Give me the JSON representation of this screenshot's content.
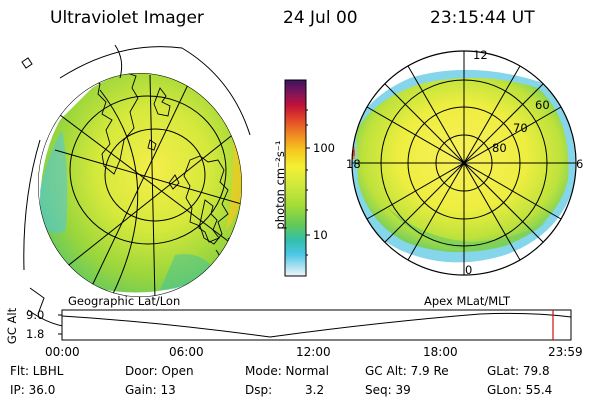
{
  "header": {
    "title": "Ultraviolet Imager",
    "date": "24 Jul 00",
    "time": "23:15:44 UT"
  },
  "colorbar": {
    "unit_label": "photon cm⁻²s⁻¹",
    "ticks": [
      "100",
      "10"
    ],
    "colors": [
      "#3a1560",
      "#7a145c",
      "#c2123a",
      "#e2442a",
      "#f08a22",
      "#f6c81e",
      "#f4f034",
      "#cfe83c",
      "#a4dc38",
      "#62c858",
      "#33bfae",
      "#4ec6e6",
      "#a9e0ef",
      "#eef5f8"
    ]
  },
  "geo_map": {
    "label": "Geographic Lat/Lon"
  },
  "apex_map": {
    "label": "Apex MLat/MLT",
    "mlt_labels": [
      "12",
      "18",
      "6",
      "0"
    ],
    "mlat_labels": [
      "60",
      "70",
      "80"
    ]
  },
  "altitude_plot": {
    "ylabel": "GC Alt",
    "yticks": [
      "9.0",
      "1.8"
    ],
    "time_ticks": [
      "00:00",
      "06:00",
      "12:00",
      "18:00",
      "23:59"
    ]
  },
  "status": {
    "filter": "Flt: LBHL",
    "ip": "IP: 36.0",
    "door": "Door: Open",
    "gain": "Gain: 13",
    "mode": "Mode: Normal",
    "dsp_label": "Dsp:",
    "dsp_value": "3.2",
    "gc_alt": "GC Alt: 7.9 Re",
    "seq": "Seq: 39",
    "glat": "GLat: 79.8",
    "glon": "GLon: 55.4"
  }
}
